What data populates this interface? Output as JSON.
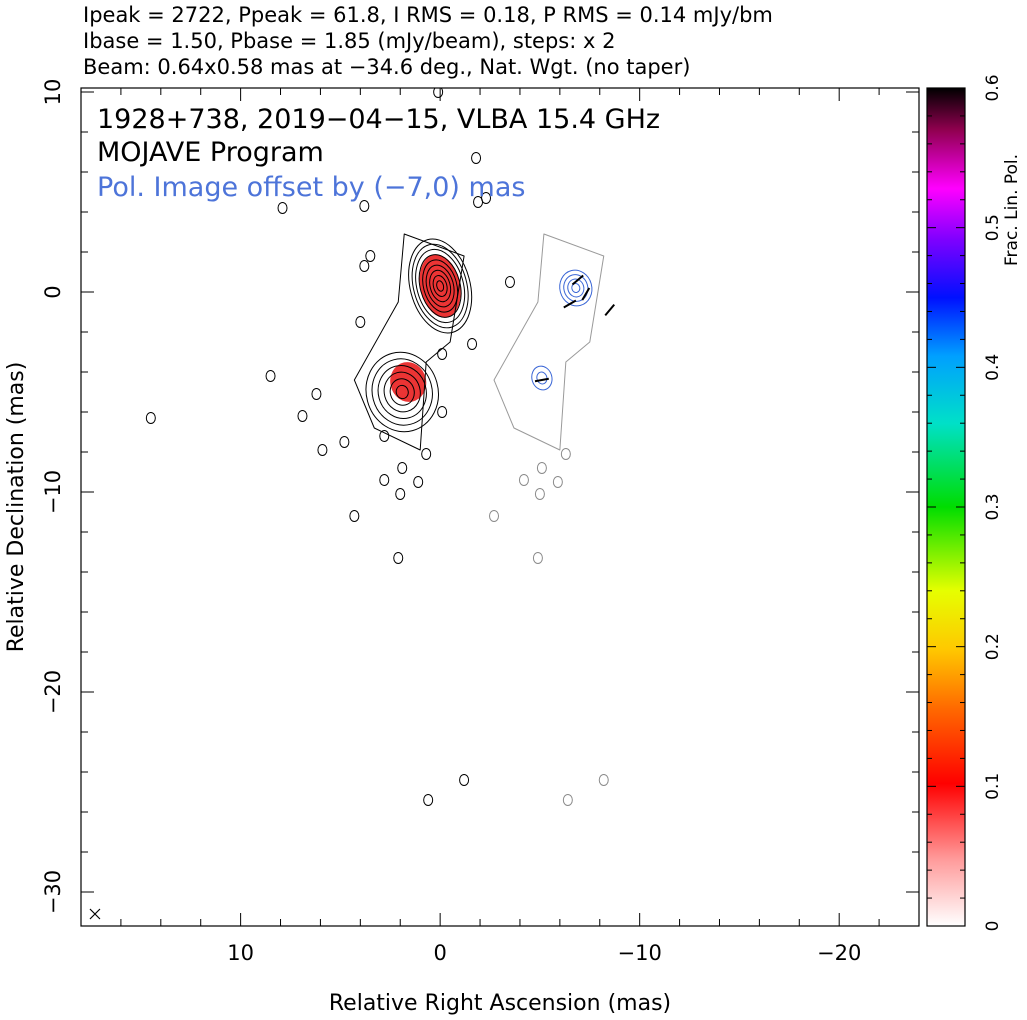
{
  "chart_data": {
    "type": "contour-map",
    "header_lines": [
      "Ipeak = 2722, Ppeak = 61.8, I RMS = 0.18, P RMS = 0.14 mJy/bm",
      "Ibase = 1.50, Pbase = 1.85 (mJy/beam), steps: x 2",
      "Beam: 0.64x0.58 mas at −34.6 deg., Nat. Wgt. (no taper)"
    ],
    "annotations": [
      "1928+738, 2019−04−15, VLBA 15.4 GHz",
      "MOJAVE Program",
      "Pol. Image offset by (−7,0) mas"
    ],
    "xlabel": "Relative Right Ascension (mas)",
    "ylabel": "Relative Declination (mas)",
    "xlim": [
      18,
      -24
    ],
    "ylim": [
      -31.7,
      10.2
    ],
    "x_ticks": [
      10,
      0,
      -10,
      -20
    ],
    "x_tick_labels": [
      "10",
      "0",
      "−10",
      "−20"
    ],
    "y_ticks": [
      10,
      0,
      -10,
      -20,
      -30
    ],
    "y_tick_labels": [
      "10",
      "0",
      "−10",
      "−20",
      "−30"
    ],
    "colorbar": {
      "label": "Frac. Lin. Pol.",
      "range": [
        0,
        0.6
      ],
      "ticks": [
        0,
        0.1,
        0.2,
        0.3,
        0.4,
        0.5,
        0.6
      ],
      "tick_labels": [
        "0",
        "0.1",
        "0.2",
        "0.3",
        "0.4",
        "0.5",
        "0.6"
      ]
    },
    "beam_marker": {
      "x": 17.3,
      "y": -31.1
    },
    "stokes_i_contours": {
      "color": "#000000",
      "components": [
        {
          "x": 0.0,
          "y": 0.3,
          "rx": 1.5,
          "ry": 2.4,
          "levels": 9
        },
        {
          "x": 1.9,
          "y": -5.0,
          "rx": 1.8,
          "ry": 2.0,
          "levels": 6
        }
      ],
      "islands": [
        [
          3.5,
          1.8
        ],
        [
          3.8,
          1.3
        ],
        [
          4.0,
          -1.5
        ],
        [
          2.8,
          -7.2
        ],
        [
          0.7,
          -8.1
        ],
        [
          1.9,
          -8.8
        ],
        [
          2.8,
          -9.4
        ],
        [
          1.1,
          -9.5
        ],
        [
          2.0,
          -10.1
        ],
        [
          4.3,
          -11.2
        ],
        [
          2.1,
          -13.3
        ],
        [
          0.6,
          -25.4
        ],
        [
          -1.2,
          -24.4
        ],
        [
          -0.1,
          -6.0
        ],
        [
          -0.1,
          -3.1
        ],
        [
          -1.6,
          -2.6
        ],
        [
          5.9,
          -7.9
        ],
        [
          4.8,
          -7.5
        ],
        [
          6.2,
          -5.1
        ],
        [
          6.9,
          -6.2
        ],
        [
          8.5,
          -4.2
        ],
        [
          14.5,
          -6.3
        ],
        [
          -1.8,
          6.7
        ],
        [
          3.8,
          4.3
        ],
        [
          7.9,
          4.2
        ],
        [
          0.1,
          10.0
        ],
        [
          -2.3,
          4.7
        ],
        [
          -1.9,
          4.5
        ],
        [
          -3.5,
          0.5
        ]
      ]
    },
    "pol_contours": {
      "color": "#3a66d6",
      "offset_ra": -7,
      "components": [
        {
          "x": -6.8,
          "y": 0.2,
          "rx": 0.8,
          "ry": 0.9,
          "levels": 4
        },
        {
          "x": -5.1,
          "y": -4.3,
          "rx": 0.5,
          "ry": 0.6,
          "levels": 2
        }
      ]
    },
    "frac_pol_patches": [
      {
        "x": 0.0,
        "y": 0.3,
        "rx": 1.0,
        "ry": 1.6,
        "value": 0.07
      },
      {
        "x": 1.6,
        "y": -4.5,
        "rx": 0.9,
        "ry": 1.0,
        "value": 0.06
      }
    ]
  }
}
